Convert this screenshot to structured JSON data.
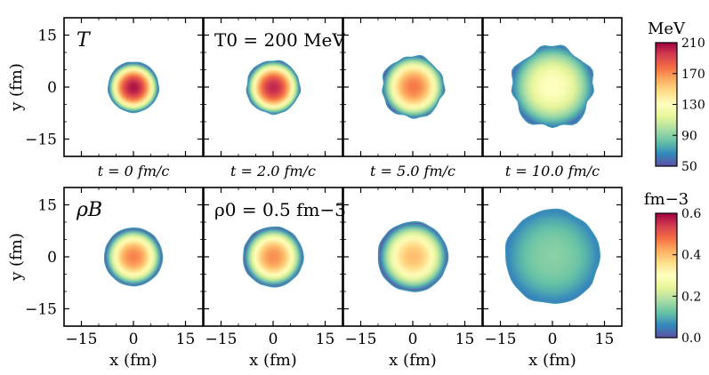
{
  "chart_data": {
    "type": "heatmap",
    "title": "",
    "xlabel": "x (fm)",
    "ylabel": "y (fm)",
    "xlim": [
      -20,
      20
    ],
    "ylim": [
      -20,
      20
    ],
    "x_ticks": [
      -15,
      0,
      15
    ],
    "y_ticks": [
      -15,
      0,
      15
    ],
    "times": [
      "t = 0 fm/c",
      "t = 2.0 fm/c",
      "t = 5.0 fm/c",
      "t = 10.0 fm/c"
    ],
    "rows": [
      {
        "quantity": "T",
        "label": "T",
        "param_label": "T0 = 200 MeV",
        "colorbar": {
          "unit": "MeV",
          "ticks": [
            50,
            90,
            130,
            170,
            210
          ],
          "range": [
            50,
            210
          ]
        },
        "panels": [
          {
            "time": "t = 0 fm/c",
            "radius_fm": 7.2,
            "center_value": 205,
            "edge_value": 55,
            "wobble": 0.01
          },
          {
            "time": "t = 2.0 fm/c",
            "radius_fm": 7.6,
            "center_value": 200,
            "edge_value": 55,
            "wobble": 0.02
          },
          {
            "time": "t = 5.0 fm/c",
            "radius_fm": 8.8,
            "center_value": 175,
            "edge_value": 55,
            "wobble": 0.035
          },
          {
            "time": "t = 10.0 fm/c",
            "radius_fm": 11.6,
            "center_value": 130,
            "edge_value": 60,
            "wobble": 0.05
          }
        ]
      },
      {
        "quantity": "rho_B",
        "label": "ρB",
        "param_label": "ρ0 = 0.5 fm−3",
        "colorbar": {
          "unit": "fm−3",
          "ticks": [
            "0.0",
            "0.2",
            "0.4",
            "0.6"
          ],
          "range": [
            0,
            0.6
          ]
        },
        "panels": [
          {
            "time": "t = 0 fm/c",
            "radius_fm": 8.3,
            "center_value": 0.46,
            "edge_value": 0.0,
            "wobble": 0.005
          },
          {
            "time": "t = 2.0 fm/c",
            "radius_fm": 8.6,
            "center_value": 0.45,
            "edge_value": 0.0,
            "wobble": 0.01
          },
          {
            "time": "t = 5.0 fm/c",
            "radius_fm": 10.0,
            "center_value": 0.4,
            "edge_value": 0.0,
            "wobble": 0.01
          },
          {
            "time": "t = 10.0 fm/c",
            "radius_fm": 13.5,
            "center_value": 0.15,
            "edge_value": 0.05,
            "wobble": 0.015
          }
        ]
      }
    ]
  }
}
